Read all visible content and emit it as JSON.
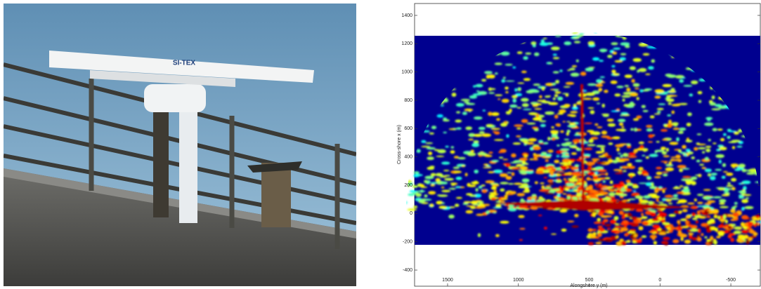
{
  "photo": {
    "label": "SI-TEX"
  },
  "chart_data": {
    "type": "image",
    "xlabel": "Alongshore y (m)",
    "ylabel": "Cross-shore x (m)",
    "xlim": [
      1733,
      -708
    ],
    "ylim": [
      -514,
      1484
    ],
    "xticks": [
      1500,
      1000,
      500,
      0,
      -500
    ],
    "yticks": [
      -400,
      -200,
      0,
      200,
      400,
      600,
      800,
      1000,
      1200,
      1400
    ]
  }
}
